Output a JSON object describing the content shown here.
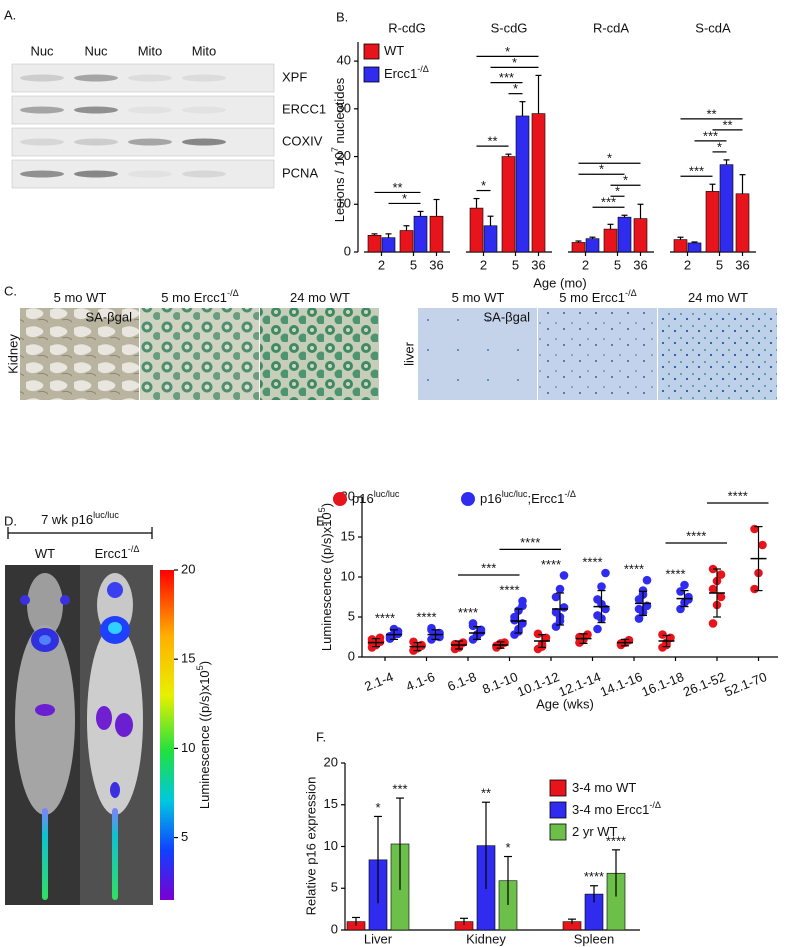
{
  "panel_labels": [
    "A.",
    "B.",
    "C.",
    "D.",
    "E.",
    "F."
  ],
  "blot": {
    "columns": [
      "Nuc",
      "Nuc",
      "Mito",
      "Mito"
    ],
    "rows": [
      "XPF",
      "ERCC1",
      "COXIV",
      "PCNA"
    ]
  },
  "staining": {
    "kidney": {
      "label": "Kidney",
      "stain": "SA-βgal",
      "images": [
        [
          "5 mo WT"
        ],
        [
          "5 mo Ercc1",
          "-/Δ"
        ],
        [
          "24 mo WT"
        ]
      ]
    },
    "liver": {
      "label": "liver",
      "stain": "SA-βgal",
      "images": [
        [
          "5 mo WT"
        ],
        [
          "5 mo Ercc1",
          "-/Δ"
        ],
        [
          "24 mo WT"
        ]
      ]
    }
  },
  "imaging": {
    "title": [
      "7 wk p16",
      "luc/luc"
    ],
    "mice": [
      [
        "WT"
      ],
      [
        "Ercc1",
        "-/Δ"
      ]
    ],
    "colorbar": {
      "label": [
        "Luminescence ((p/s)x10",
        "5",
        ")"
      ],
      "clim": [
        1.5,
        20
      ],
      "ticks": [
        5,
        10,
        15,
        20
      ]
    }
  },
  "chart_data": [
    {
      "type": "grouped_bar",
      "ylabel": [
        "Lesions / 10",
        "7",
        " nucleotides"
      ],
      "xlabel": "Age (mo)",
      "ylim": [
        0,
        44
      ],
      "yticks": [
        0,
        10,
        20,
        30,
        40
      ],
      "categories": [
        "2",
        "5",
        "36"
      ],
      "series": [
        {
          "name": [
            "WT"
          ],
          "color": "#e8141c"
        },
        {
          "name": [
            "Ercc1",
            "-/Δ"
          ],
          "color": "#2f2cf0"
        }
      ],
      "groups": [
        {
          "title": "R-cdG",
          "values": [
            [
              3.5,
              4.5,
              7.5
            ],
            [
              3,
              7.5,
              null
            ]
          ],
          "errors": [
            [
              0.3,
              1,
              3.5
            ],
            [
              0.8,
              1,
              null
            ]
          ],
          "brackets": [
            {
              "from": [
                1,
                0
              ],
              "to": [
                1,
                1
              ],
              "label": "*"
            },
            {
              "from": [
                0,
                0
              ],
              "to": [
                1,
                1
              ],
              "label": "**"
            }
          ]
        },
        {
          "title": "S-cdG",
          "values": [
            [
              9.2,
              20,
              29
            ],
            [
              5.5,
              28.5,
              null
            ]
          ],
          "errors": [
            [
              2,
              0.5,
              8
            ],
            [
              2,
              3,
              null
            ]
          ],
          "brackets": [
            {
              "from": [
                0,
                0
              ],
              "to": [
                1,
                0
              ],
              "label": "*"
            },
            {
              "from": [
                0,
                0
              ],
              "to": [
                0,
                1
              ],
              "label": "**"
            },
            {
              "from": [
                0,
                1
              ],
              "to": [
                1,
                1
              ],
              "label": "*"
            },
            {
              "from": [
                1,
                0
              ],
              "to": [
                1,
                1
              ],
              "label": "***"
            },
            {
              "from": [
                1,
                0
              ],
              "to": [
                0,
                2
              ],
              "label": "*"
            },
            {
              "from": [
                0,
                0
              ],
              "to": [
                0,
                2
              ],
              "label": "*"
            }
          ]
        },
        {
          "title": "R-cdA",
          "values": [
            [
              2,
              4.8,
              7
            ],
            [
              2.8,
              7.3,
              null
            ]
          ],
          "errors": [
            [
              0.3,
              1,
              3
            ],
            [
              0.3,
              0.4,
              null
            ]
          ],
          "brackets": [
            {
              "from": [
                1,
                0
              ],
              "to": [
                1,
                1
              ],
              "label": "***"
            },
            {
              "from": [
                0,
                1
              ],
              "to": [
                1,
                1
              ],
              "label": "*"
            },
            {
              "from": [
                0,
                1
              ],
              "to": [
                0,
                2
              ],
              "label": "*"
            },
            {
              "from": [
                0,
                0
              ],
              "to": [
                1,
                1
              ],
              "label": "*"
            },
            {
              "from": [
                0,
                0
              ],
              "to": [
                0,
                2
              ],
              "label": "*"
            }
          ]
        },
        {
          "title": "S-cdA",
          "values": [
            [
              2.6,
              12.7,
              12.2
            ],
            [
              1.9,
              18.3,
              null
            ]
          ],
          "errors": [
            [
              0.5,
              1.5,
              4
            ],
            [
              0.2,
              1,
              null
            ]
          ],
          "brackets": [
            {
              "from": [
                0,
                0
              ],
              "to": [
                0,
                1
              ],
              "label": "***"
            },
            {
              "from": [
                0,
                1
              ],
              "to": [
                1,
                1
              ],
              "label": "*"
            },
            {
              "from": [
                1,
                0
              ],
              "to": [
                1,
                1
              ],
              "label": "***"
            },
            {
              "from": [
                0,
                1
              ],
              "to": [
                0,
                2
              ],
              "label": "**"
            },
            {
              "from": [
                0,
                0
              ],
              "to": [
                0,
                2
              ],
              "label": "**"
            }
          ]
        }
      ]
    },
    {
      "type": "dot_plot",
      "ylabel": [
        "Luminescence ((p/s)x10",
        "5",
        ")"
      ],
      "xlabel": "Age (wks)",
      "ylim": [
        0,
        20
      ],
      "yticks": [
        0,
        5,
        10,
        15,
        20
      ],
      "categories": [
        "2.1-4",
        "4.1-6",
        "6.1-8",
        "8.1-10",
        "10.1-12",
        "12.1-14",
        "14.1-16",
        "16.1-18",
        "26.1-52",
        "52.1-70"
      ],
      "series": [
        {
          "name": [
            "p16",
            "luc/luc"
          ],
          "color": "#e8141c",
          "means": [
            1.8,
            1.3,
            1.5,
            1.5,
            2,
            2.3,
            1.8,
            2,
            8,
            12.3
          ],
          "sd": [
            0.5,
            0.5,
            0.5,
            0.4,
            0.8,
            0.6,
            0.4,
            0.7,
            3,
            4
          ],
          "points": [
            [
              1.2,
              1.6,
              1.9,
              2.2,
              1.5,
              2.4,
              1.8
            ],
            [
              0.8,
              1.1,
              1.5,
              1.9,
              1.2,
              1.4
            ],
            [
              1.0,
              1.4,
              1.8,
              1.6,
              1.2
            ],
            [
              1.2,
              1.5,
              1.8,
              1.4,
              1.7
            ],
            [
              1.0,
              1.6,
              2.4,
              2.9,
              1.3
            ],
            [
              1.8,
              2.2,
              2.8,
              2.5
            ],
            [
              1.5,
              1.8,
              2.1,
              1.7
            ],
            [
              1.2,
              1.8,
              2.4,
              2.8,
              1.5
            ],
            [
              4.2,
              6.5,
              7.5,
              8.5,
              9.5,
              10.3,
              11.0
            ],
            [
              8.5,
              10.5,
              14.0,
              16.0
            ]
          ]
        },
        {
          "name": [
            "p16",
            "luc/luc",
            ";Ercc1",
            "-/Δ"
          ],
          "color": "#2f2cf0",
          "means": [
            2.8,
            2.8,
            3,
            4.5,
            6,
            6.3,
            6.7,
            7.3,
            null,
            null
          ],
          "sd": [
            0.6,
            0.6,
            0.8,
            1.5,
            2,
            2,
            1.5,
            1,
            null,
            null
          ],
          "points": [
            [
              2.3,
              2.8,
              3.2,
              2.6,
              3.5,
              2.9
            ],
            [
              2.2,
              2.6,
              3.0,
              3.4,
              2.8,
              2.5,
              3.6
            ],
            [
              2.2,
              2.8,
              3.4,
              3.9,
              2.6,
              3.1,
              4.2
            ],
            [
              2.8,
              3.5,
              4.2,
              5.0,
              5.8,
              6.4,
              4.6,
              3.2,
              7.0
            ],
            [
              3.8,
              5.0,
              6.2,
              7.5,
              8.5,
              10.2,
              5.6,
              4.5
            ],
            [
              3.5,
              4.8,
              6.0,
              7.2,
              8.8,
              10.5,
              5.2,
              6.6
            ],
            [
              4.8,
              5.6,
              6.4,
              7.2,
              8.3,
              9.6,
              6.0,
              7.8
            ],
            [
              6.0,
              6.8,
              7.5,
              8.2,
              9.0,
              7.2
            ],
            [],
            []
          ]
        }
      ],
      "stars": [
        "****",
        "****",
        "****",
        "****",
        "****",
        "****",
        "****",
        "****",
        null,
        null
      ],
      "brackets": [
        {
          "from": 2,
          "to": 3,
          "label": "***"
        },
        {
          "from": 3,
          "to": 4,
          "label": "****"
        },
        {
          "from": 7,
          "to": 8,
          "label": "****"
        },
        {
          "from": 8,
          "to": 9,
          "label": "****"
        }
      ]
    },
    {
      "type": "bar",
      "ylabel": "Relative p16 expression",
      "categories": [
        "Liver",
        "Kidney",
        "Spleen"
      ],
      "ylim": [
        0,
        20
      ],
      "yticks": [
        0,
        5,
        10,
        15,
        20
      ],
      "series": [
        {
          "name": [
            "3-4 mo WT"
          ],
          "color": "#e8141c",
          "values": [
            1,
            1,
            1
          ],
          "errors": [
            0.5,
            0.4,
            0.3
          ],
          "stars": [
            null,
            null,
            null
          ]
        },
        {
          "name": [
            "3-4 mo Ercc1",
            "-/Δ"
          ],
          "color": "#2f2cf0",
          "values": [
            8.4,
            10.1,
            4.3
          ],
          "errors": [
            5.2,
            5.2,
            1
          ],
          "stars": [
            "*",
            "**",
            "****"
          ]
        },
        {
          "name": [
            "2 yr  WT"
          ],
          "color": "#6cc04a",
          "values": [
            10.3,
            5.9,
            6.8
          ],
          "errors": [
            5.5,
            2.9,
            2.8
          ],
          "stars": [
            "***",
            "*",
            "****"
          ]
        }
      ]
    }
  ]
}
